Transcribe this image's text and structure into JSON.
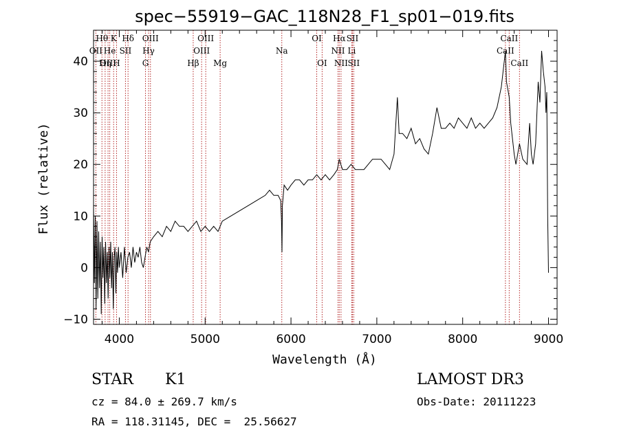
{
  "chart_data": {
    "type": "line",
    "title": "spec−55919−GAC_118N28_F1_sp01−019.fits",
    "xlabel": "Wavelength (Å)",
    "ylabel": "Flux (relative)",
    "xlim": [
      3700,
      9100
    ],
    "ylim": [
      -11,
      46
    ],
    "xticks": [
      4000,
      5000,
      6000,
      7000,
      8000,
      9000
    ],
    "yticks": [
      -10,
      0,
      10,
      20,
      30,
      40
    ],
    "series": [
      {
        "name": "spectrum",
        "points": [
          [
            3700,
            12
          ],
          [
            3710,
            -3
          ],
          [
            3720,
            10
          ],
          [
            3730,
            -8
          ],
          [
            3740,
            9
          ],
          [
            3750,
            -6
          ],
          [
            3760,
            7
          ],
          [
            3770,
            -4
          ],
          [
            3780,
            5
          ],
          [
            3790,
            -9
          ],
          [
            3800,
            6
          ],
          [
            3810,
            -2
          ],
          [
            3820,
            4
          ],
          [
            3830,
            -7
          ],
          [
            3840,
            5
          ],
          [
            3850,
            -3
          ],
          [
            3860,
            3
          ],
          [
            3870,
            -6
          ],
          [
            3880,
            4
          ],
          [
            3890,
            -2
          ],
          [
            3900,
            5
          ],
          [
            3910,
            -4
          ],
          [
            3920,
            3
          ],
          [
            3930,
            -8
          ],
          [
            3940,
            2
          ],
          [
            3950,
            4
          ],
          [
            3960,
            -5
          ],
          [
            3970,
            3
          ],
          [
            3980,
            -1
          ],
          [
            3990,
            4
          ],
          [
            4000,
            0
          ],
          [
            4020,
            3
          ],
          [
            4040,
            -2
          ],
          [
            4060,
            4
          ],
          [
            4080,
            -1
          ],
          [
            4100,
            2
          ],
          [
            4120,
            3
          ],
          [
            4140,
            0
          ],
          [
            4160,
            4
          ],
          [
            4180,
            1
          ],
          [
            4200,
            3
          ],
          [
            4220,
            2
          ],
          [
            4240,
            4
          ],
          [
            4260,
            1
          ],
          [
            4280,
            0
          ],
          [
            4300,
            2
          ],
          [
            4320,
            4
          ],
          [
            4340,
            3
          ],
          [
            4360,
            5
          ],
          [
            4400,
            6
          ],
          [
            4450,
            7
          ],
          [
            4500,
            6
          ],
          [
            4550,
            8
          ],
          [
            4600,
            7
          ],
          [
            4650,
            9
          ],
          [
            4700,
            8
          ],
          [
            4750,
            8
          ],
          [
            4800,
            7
          ],
          [
            4850,
            8
          ],
          [
            4900,
            9
          ],
          [
            4950,
            7
          ],
          [
            5000,
            8
          ],
          [
            5050,
            7
          ],
          [
            5100,
            8
          ],
          [
            5150,
            7
          ],
          [
            5200,
            9
          ],
          [
            5300,
            10
          ],
          [
            5400,
            11
          ],
          [
            5500,
            12
          ],
          [
            5600,
            13
          ],
          [
            5700,
            14
          ],
          [
            5750,
            15
          ],
          [
            5800,
            14
          ],
          [
            5850,
            14
          ],
          [
            5880,
            13
          ],
          [
            5890,
            9
          ],
          [
            5895,
            3
          ],
          [
            5900,
            12
          ],
          [
            5920,
            16
          ],
          [
            5960,
            15
          ],
          [
            6000,
            16
          ],
          [
            6050,
            17
          ],
          [
            6100,
            17
          ],
          [
            6150,
            16
          ],
          [
            6200,
            17
          ],
          [
            6250,
            17
          ],
          [
            6300,
            18
          ],
          [
            6350,
            17
          ],
          [
            6400,
            18
          ],
          [
            6450,
            17
          ],
          [
            6500,
            18
          ],
          [
            6540,
            19
          ],
          [
            6563,
            21
          ],
          [
            6580,
            20
          ],
          [
            6600,
            19
          ],
          [
            6650,
            19
          ],
          [
            6700,
            20
          ],
          [
            6750,
            19
          ],
          [
            6800,
            19
          ],
          [
            6850,
            19
          ],
          [
            6900,
            20
          ],
          [
            6950,
            21
          ],
          [
            7000,
            21
          ],
          [
            7050,
            21
          ],
          [
            7100,
            20
          ],
          [
            7150,
            19
          ],
          [
            7200,
            22
          ],
          [
            7240,
            33
          ],
          [
            7260,
            26
          ],
          [
            7300,
            26
          ],
          [
            7350,
            25
          ],
          [
            7400,
            27
          ],
          [
            7450,
            24
          ],
          [
            7500,
            25
          ],
          [
            7550,
            23
          ],
          [
            7600,
            22
          ],
          [
            7650,
            26
          ],
          [
            7700,
            31
          ],
          [
            7750,
            27
          ],
          [
            7800,
            27
          ],
          [
            7850,
            28
          ],
          [
            7900,
            27
          ],
          [
            7950,
            29
          ],
          [
            8000,
            28
          ],
          [
            8050,
            27
          ],
          [
            8100,
            29
          ],
          [
            8150,
            27
          ],
          [
            8200,
            28
          ],
          [
            8250,
            27
          ],
          [
            8300,
            28
          ],
          [
            8350,
            29
          ],
          [
            8400,
            31
          ],
          [
            8450,
            35
          ],
          [
            8498,
            42
          ],
          [
            8510,
            36
          ],
          [
            8542,
            33
          ],
          [
            8560,
            28
          ],
          [
            8600,
            22
          ],
          [
            8620,
            20
          ],
          [
            8662,
            24
          ],
          [
            8700,
            21
          ],
          [
            8750,
            20
          ],
          [
            8780,
            28
          ],
          [
            8800,
            22
          ],
          [
            8820,
            20
          ],
          [
            8850,
            24
          ],
          [
            8880,
            36
          ],
          [
            8900,
            32
          ],
          [
            8920,
            42
          ],
          [
            8940,
            38
          ],
          [
            8960,
            35
          ],
          [
            8970,
            30
          ],
          [
            8980,
            34
          ],
          [
            8990,
            10
          ],
          [
            9000,
            -1
          ]
        ]
      }
    ],
    "lines": [
      {
        "label": "Hθ",
        "x": 3798,
        "row": 0
      },
      {
        "label": "OII",
        "x": 3727,
        "row": 1
      },
      {
        "label": "OIII",
        "x": 3869,
        "row": 2
      },
      {
        "label": "He",
        "x": 3889,
        "row": 1
      },
      {
        "label": "Hη",
        "x": 3835,
        "row": 2
      },
      {
        "label": "K",
        "x": 3934,
        "row": 0
      },
      {
        "label": "H",
        "x": 3968,
        "row": 2
      },
      {
        "label": "SII",
        "x": 4072,
        "row": 1
      },
      {
        "label": "Hδ",
        "x": 4102,
        "row": 0
      },
      {
        "label": "OIII",
        "x": 4363,
        "row": 0
      },
      {
        "label": "Hγ",
        "x": 4341,
        "row": 1
      },
      {
        "label": "G",
        "x": 4305,
        "row": 2
      },
      {
        "label": "Hβ",
        "x": 4861,
        "row": 2
      },
      {
        "label": "OIII",
        "x": 5007,
        "row": 0
      },
      {
        "label": "OIII",
        "x": 4959,
        "row": 1
      },
      {
        "label": "Mg",
        "x": 5175,
        "row": 2
      },
      {
        "label": "Na",
        "x": 5893,
        "row": 1
      },
      {
        "label": "OI",
        "x": 6300,
        "row": 0
      },
      {
        "label": "OI",
        "x": 6363,
        "row": 2
      },
      {
        "label": "Hα",
        "x": 6563,
        "row": 0
      },
      {
        "label": "NII",
        "x": 6548,
        "row": 1
      },
      {
        "label": "NII",
        "x": 6583,
        "row": 2
      },
      {
        "label": "SII",
        "x": 6716,
        "row": 0
      },
      {
        "label": "Li",
        "x": 6708,
        "row": 1
      },
      {
        "label": "SII",
        "x": 6731,
        "row": 2
      },
      {
        "label": "CaII",
        "x": 8542,
        "row": 0
      },
      {
        "label": "CaII",
        "x": 8498,
        "row": 1
      },
      {
        "label": "CaII",
        "x": 8662,
        "row": 2
      }
    ]
  },
  "info": {
    "object_class": "STAR",
    "subclass": "K1",
    "survey": "LAMOST DR3",
    "redshift_line": "cz = 84.0 ± 269.7 km/s",
    "obs_date": "Obs-Date: 20111223",
    "coords": "RA = 118.31145, DEC =  25.56627"
  },
  "colors": {
    "line_marker": "#b22222",
    "spectrum": "#000000",
    "axis": "#000000"
  }
}
